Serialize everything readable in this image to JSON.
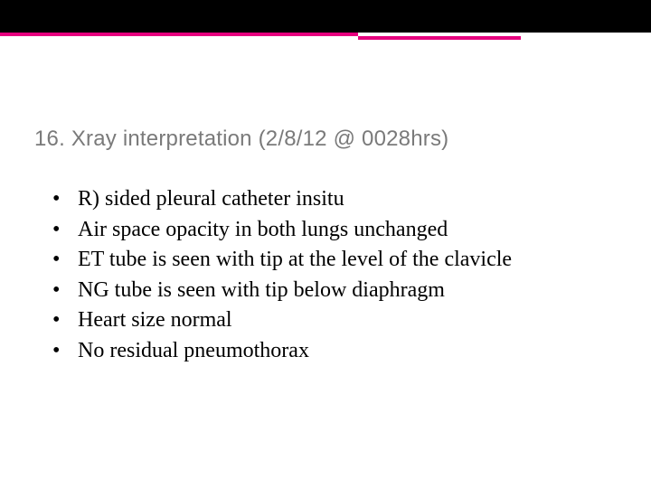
{
  "slide": {
    "title": "16.  Xray interpretation (2/8/12 @ 0028hrs)",
    "title_color": "#7a7a7a",
    "title_fontsize": 24,
    "title_font": "Verdana",
    "body_fontsize": 24,
    "body_font": "Georgia",
    "body_color": "#000000",
    "background_color": "#ffffff",
    "top_bar_color": "#000000",
    "top_bar_height": 36,
    "accent": {
      "row1": [
        {
          "width_pct": 55,
          "color": "#e6007e"
        },
        {
          "width_pct": 45,
          "color": "#ffffff"
        }
      ],
      "row2": [
        {
          "width_pct": 55,
          "color": "#ffffff"
        },
        {
          "width_pct": 25,
          "color": "#e6007e"
        },
        {
          "width_pct": 20,
          "color": "#ffffff"
        }
      ]
    },
    "bullets": [
      "R) sided pleural catheter insitu",
      "Air space opacity in both lungs unchanged",
      "ET tube is seen with tip at the level of the clavicle",
      "NG tube is seen with tip below diaphragm",
      "Heart size normal",
      "No residual pneumothorax"
    ]
  }
}
